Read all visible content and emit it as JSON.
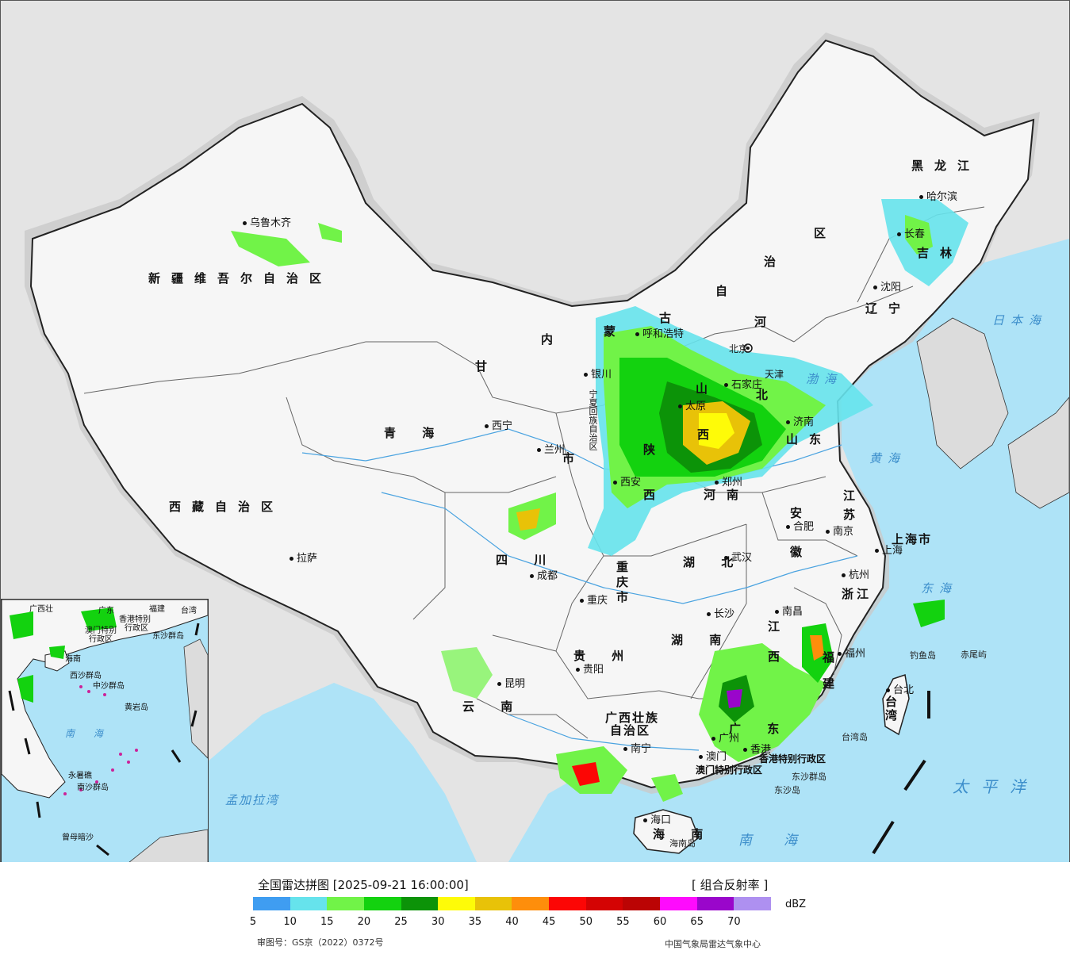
{
  "map": {
    "provinces": [
      {
        "id": "xinjiang",
        "text": "新疆维吾尔自治区"
      },
      {
        "id": "xizang",
        "text": "西藏自治区"
      },
      {
        "id": "qinghai",
        "text": "青 海"
      },
      {
        "id": "gansu",
        "text": "甘"
      },
      {
        "id": "neimenggu-1",
        "text": "内"
      },
      {
        "id": "neimenggu-2",
        "text": "蒙"
      },
      {
        "id": "neimenggu-3",
        "text": "古"
      },
      {
        "id": "neimenggu-4",
        "text": "自"
      },
      {
        "id": "neimenggu-5",
        "text": "治"
      },
      {
        "id": "neimenggu-6",
        "text": "区"
      },
      {
        "id": "heilongjiang",
        "text": "黑龙江"
      },
      {
        "id": "jilin",
        "text": "吉林"
      },
      {
        "id": "liaoning",
        "text": "辽宁"
      },
      {
        "id": "hebei-1",
        "text": "河"
      },
      {
        "id": "hebei-2",
        "text": "北"
      },
      {
        "id": "shanxi-1",
        "text": "山"
      },
      {
        "id": "shanxi-2",
        "text": "西"
      },
      {
        "id": "shandong",
        "text": "山东"
      },
      {
        "id": "henan",
        "text": "河南"
      },
      {
        "id": "shaanxi-1",
        "text": "陕"
      },
      {
        "id": "shaanxi-2",
        "text": "西"
      },
      {
        "id": "ningxia",
        "text": "宁夏回族自治区"
      },
      {
        "id": "sichuan",
        "text": "四 川"
      },
      {
        "id": "chongqing",
        "text": "重庆市"
      },
      {
        "id": "hubei",
        "text": "湖 北"
      },
      {
        "id": "hunan",
        "text": "湖 南"
      },
      {
        "id": "anhui-1",
        "text": "安"
      },
      {
        "id": "anhui-2",
        "text": "徽"
      },
      {
        "id": "jiangsu-1",
        "text": "江"
      },
      {
        "id": "jiangsu-2",
        "text": "苏"
      },
      {
        "id": "shanghai",
        "text": "上海市"
      },
      {
        "id": "zhejiang",
        "text": "浙江"
      },
      {
        "id": "jiangxi-1",
        "text": "江"
      },
      {
        "id": "jiangxi-2",
        "text": "西"
      },
      {
        "id": "fujian-1",
        "text": "福"
      },
      {
        "id": "fujian-2",
        "text": "建"
      },
      {
        "id": "guizhou",
        "text": "贵 州"
      },
      {
        "id": "yunnan",
        "text": "云 南"
      },
      {
        "id": "guangxi-1",
        "text": "广西壮族"
      },
      {
        "id": "guangxi-2",
        "text": "自治区"
      },
      {
        "id": "guangdong",
        "text": "广 东"
      },
      {
        "id": "hainan",
        "text": "海 南"
      },
      {
        "id": "taiwan",
        "text": "台湾"
      },
      {
        "id": "hk",
        "text": "香港特别行政区"
      },
      {
        "id": "macao",
        "text": "澳门特别行政区"
      },
      {
        "id": "tianjin",
        "text": "天津"
      },
      {
        "id": "beijing",
        "text": "北京"
      },
      {
        "id": "gansu-lanzhou",
        "text": "市"
      }
    ],
    "cities": [
      {
        "id": "urumqi",
        "text": "乌鲁木齐"
      },
      {
        "id": "lhasa",
        "text": "拉萨"
      },
      {
        "id": "xining",
        "text": "西宁"
      },
      {
        "id": "lanzhou",
        "text": "兰州"
      },
      {
        "id": "yinchuan",
        "text": "银川"
      },
      {
        "id": "hohhot",
        "text": "呼和浩特"
      },
      {
        "id": "harbin",
        "text": "哈尔滨"
      },
      {
        "id": "changchun",
        "text": "长春"
      },
      {
        "id": "shenyang",
        "text": "沈阳"
      },
      {
        "id": "shijiazhuang",
        "text": "石家庄"
      },
      {
        "id": "taiyuan",
        "text": "太原"
      },
      {
        "id": "jinan",
        "text": "济南"
      },
      {
        "id": "zhengzhou",
        "text": "郑州"
      },
      {
        "id": "xian",
        "text": "西安"
      },
      {
        "id": "chengdu",
        "text": "成都"
      },
      {
        "id": "chongqing-city",
        "text": "重庆"
      },
      {
        "id": "wuhan",
        "text": "武汉"
      },
      {
        "id": "hefei",
        "text": "合肥"
      },
      {
        "id": "nanjing",
        "text": "南京"
      },
      {
        "id": "shanghai-city",
        "text": "上海"
      },
      {
        "id": "hangzhou",
        "text": "杭州"
      },
      {
        "id": "nanchang",
        "text": "南昌"
      },
      {
        "id": "changsha",
        "text": "长沙"
      },
      {
        "id": "guiyang",
        "text": "贵阳"
      },
      {
        "id": "kunming",
        "text": "昆明"
      },
      {
        "id": "nanning",
        "text": "南宁"
      },
      {
        "id": "guangzhou",
        "text": "广州"
      },
      {
        "id": "fuzhou",
        "text": "福州"
      },
      {
        "id": "taibei",
        "text": "台北"
      },
      {
        "id": "haikou",
        "text": "海口"
      },
      {
        "id": "hongkong-city",
        "text": "香港"
      },
      {
        "id": "macao-city",
        "text": "澳门"
      }
    ],
    "seas": [
      {
        "id": "japan-sea",
        "text": "日本海"
      },
      {
        "id": "bohai",
        "text": "渤海"
      },
      {
        "id": "yellow-sea",
        "text": "黄海"
      },
      {
        "id": "east-sea",
        "text": "东海"
      },
      {
        "id": "pacific",
        "text": "太平洋"
      },
      {
        "id": "south-sea",
        "text": "南海"
      },
      {
        "id": "bengal",
        "text": "孟加拉湾"
      }
    ],
    "islands": [
      {
        "id": "diaoyu",
        "text": "钓鱼岛"
      },
      {
        "id": "chiwei",
        "text": "赤尾屿"
      },
      {
        "id": "dongsha-1",
        "text": "东沙群岛"
      },
      {
        "id": "dongsha-2",
        "text": "东沙岛"
      },
      {
        "id": "hainan-island",
        "text": "海南岛"
      },
      {
        "id": "taiwan-island",
        "text": "台湾岛"
      }
    ],
    "inset_labels": [
      {
        "id": "i-guangxi",
        "text": "广西壮"
      },
      {
        "id": "i-guangdong",
        "text": "广东"
      },
      {
        "id": "i-fujian",
        "text": "福建"
      },
      {
        "id": "i-taiwan",
        "text": "台湾"
      },
      {
        "id": "i-hk",
        "text": "香港特别"
      },
      {
        "id": "i-hk2",
        "text": "行政区"
      },
      {
        "id": "i-macao",
        "text": "澳门特别"
      },
      {
        "id": "i-macao2",
        "text": "行政区"
      },
      {
        "id": "i-dongsha",
        "text": "东沙群岛"
      },
      {
        "id": "i-hainan",
        "text": "海南"
      },
      {
        "id": "i-xisha",
        "text": "西沙群岛"
      },
      {
        "id": "i-zhongsha",
        "text": "中沙群岛"
      },
      {
        "id": "i-huangyan",
        "text": "黄岩岛"
      },
      {
        "id": "i-nansha",
        "text": "南沙群岛"
      },
      {
        "id": "i-yongshu",
        "text": "永暑礁"
      },
      {
        "id": "i-zengmu",
        "text": "曾母暗沙"
      },
      {
        "id": "i-sea",
        "text": "南 海"
      }
    ]
  },
  "legend": {
    "title": "全国雷达拼图 [2025-09-21 16:00:00]",
    "product": "[ 组合反射率 ]",
    "unit": "dBZ",
    "ticks": [
      "5",
      "10",
      "15",
      "20",
      "25",
      "30",
      "35",
      "40",
      "45",
      "50",
      "55",
      "60",
      "65",
      "70"
    ],
    "colors": [
      "#3f9df1",
      "#66e3ec",
      "#71f348",
      "#13d20f",
      "#0c9308",
      "#fefb08",
      "#e8c208",
      "#fe8e0b",
      "#fc0605",
      "#d40303",
      "#bb0404",
      "#fe0bfd",
      "#9a06cb",
      "#ae90f0"
    ],
    "approval": "审图号：GS京（2022）0372号",
    "source": "中国气象局雷达气象中心"
  }
}
